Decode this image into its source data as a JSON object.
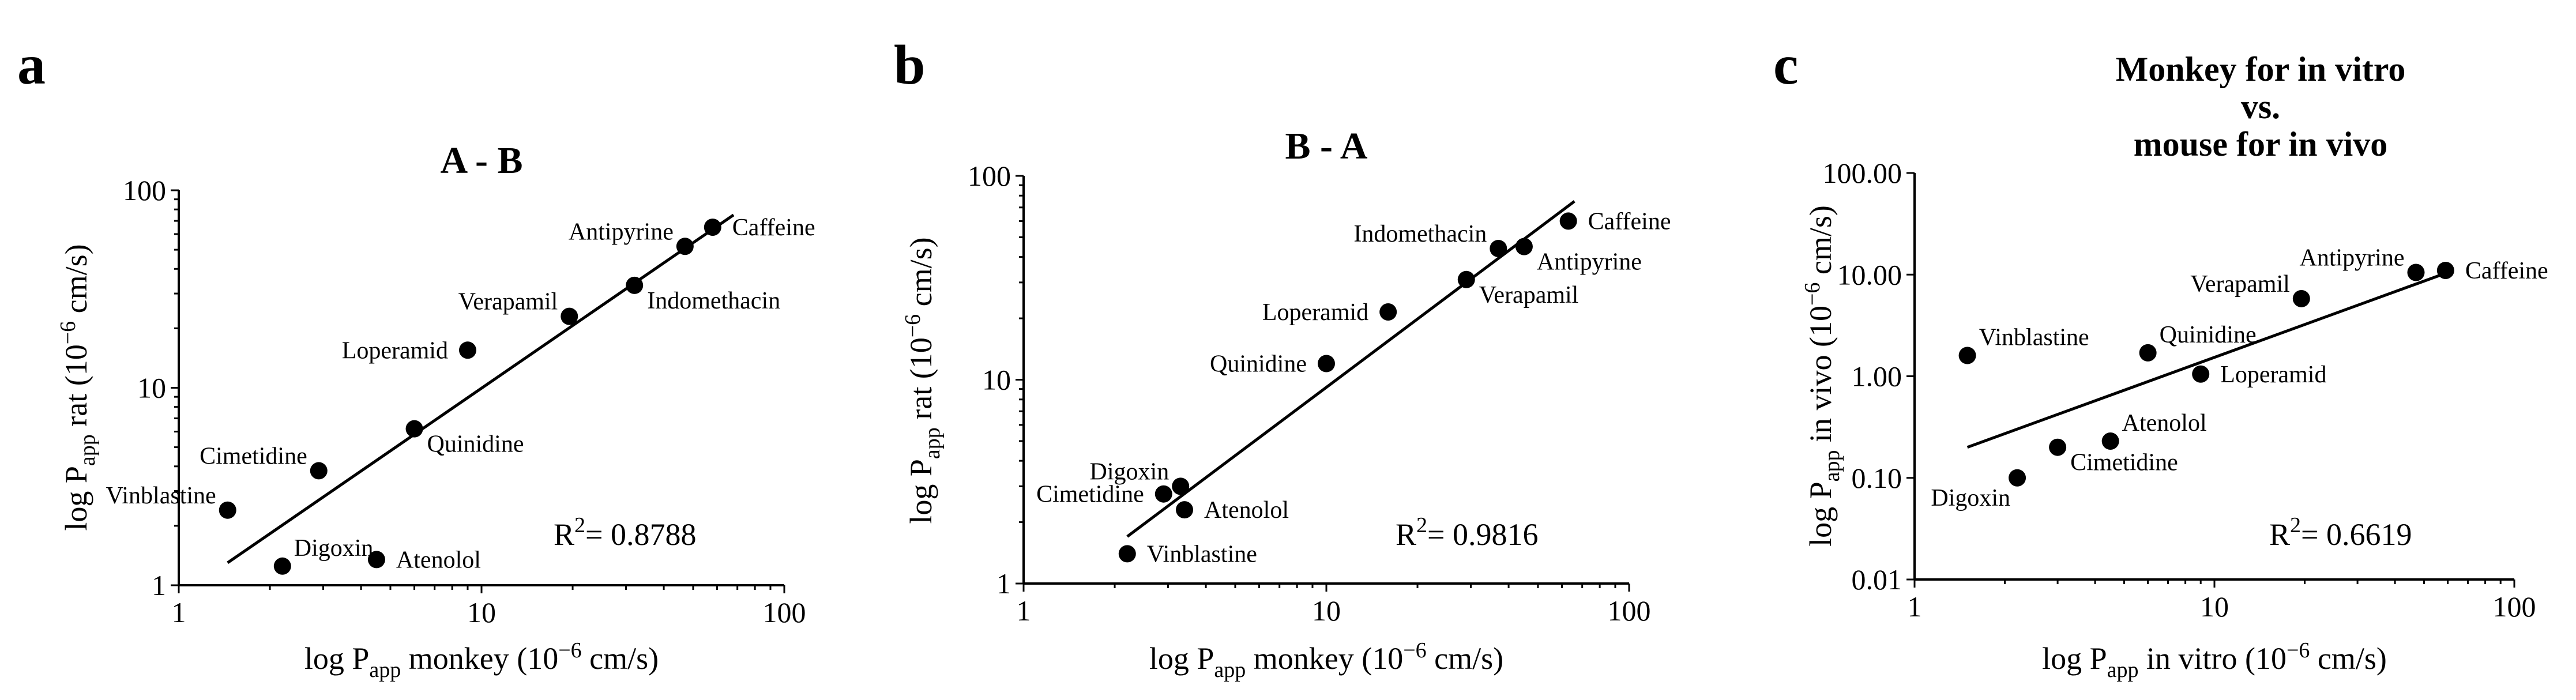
{
  "chart_data": [
    {
      "panel": "a",
      "type": "scatter",
      "title": "A - B",
      "xlabel": {
        "pre": "log P",
        "sub": "app",
        "post": " monkey  (10",
        "sup": "−6",
        "end": " cm/s)"
      },
      "ylabel": {
        "pre": "log P",
        "sub": "app",
        "post": " rat  (10",
        "sup": "−6",
        "end": " cm/s)"
      },
      "xscale": "log",
      "yscale": "log",
      "xlim": [
        1,
        100
      ],
      "ylim": [
        1,
        100
      ],
      "xticks": [
        1,
        10,
        100
      ],
      "xtick_labels": [
        "1",
        "10",
        "100"
      ],
      "yticks": [
        1,
        10,
        100
      ],
      "ytick_labels": [
        "1",
        "10",
        "100"
      ],
      "r2": {
        "pre": "R",
        "sup": "2",
        "post": "= 0.8788"
      },
      "fit": {
        "x": [
          1.45,
          68
        ],
        "y": [
          1.3,
          75
        ]
      },
      "points": [
        {
          "name": "Caffeine",
          "x": 58,
          "y": 65,
          "anchor": "right"
        },
        {
          "name": "Antipyrine",
          "x": 47,
          "y": 52,
          "anchor": "left-up"
        },
        {
          "name": "Indomethacin",
          "x": 32,
          "y": 33,
          "anchor": "right-down"
        },
        {
          "name": "Verapamil",
          "x": 19.5,
          "y": 23,
          "anchor": "left-up"
        },
        {
          "name": "Loperamid",
          "x": 9,
          "y": 15.5,
          "anchor": "left"
        },
        {
          "name": "Quinidine",
          "x": 6,
          "y": 6.2,
          "anchor": "right-down"
        },
        {
          "name": "Cimetidine",
          "x": 2.9,
          "y": 3.8,
          "anchor": "left-up"
        },
        {
          "name": "Vinblastine",
          "x": 1.45,
          "y": 2.4,
          "anchor": "left-up"
        },
        {
          "name": "Digoxin",
          "x": 2.2,
          "y": 1.25,
          "anchor": "right-up"
        },
        {
          "name": "Atenolol",
          "x": 4.5,
          "y": 1.35,
          "anchor": "right"
        }
      ]
    },
    {
      "panel": "b",
      "type": "scatter",
      "title": "B - A",
      "xlabel": {
        "pre": "log P",
        "sub": "app",
        "post": " monkey (10",
        "sup": "−6",
        "end": " cm/s)"
      },
      "ylabel": {
        "pre": "log P",
        "sub": "app",
        "post": " rat  (10",
        "sup": "−6",
        "end": " cm/s)"
      },
      "xscale": "log",
      "yscale": "log",
      "xlim": [
        1,
        100
      ],
      "ylim": [
        1,
        100
      ],
      "xticks": [
        1,
        10,
        100
      ],
      "xtick_labels": [
        "1",
        "10",
        "100"
      ],
      "yticks": [
        1,
        10,
        100
      ],
      "ytick_labels": [
        "1",
        "10",
        "100"
      ],
      "r2": {
        "pre": "R",
        "sup": "2",
        "post": "= 0.9816"
      },
      "fit": {
        "x": [
          2.2,
          66
        ],
        "y": [
          1.7,
          75
        ]
      },
      "points": [
        {
          "name": "Caffeine",
          "x": 63,
          "y": 60,
          "anchor": "right"
        },
        {
          "name": "Indomethacin",
          "x": 37,
          "y": 44,
          "anchor": "left-up"
        },
        {
          "name": "Antipyrine",
          "x": 45,
          "y": 45,
          "anchor": "right-down"
        },
        {
          "name": "Verapamil",
          "x": 29,
          "y": 31,
          "anchor": "right-down"
        },
        {
          "name": "Loperamid",
          "x": 16,
          "y": 21.5,
          "anchor": "left"
        },
        {
          "name": "Quinidine",
          "x": 10,
          "y": 12,
          "anchor": "left"
        },
        {
          "name": "Digoxin",
          "x": 3.3,
          "y": 3.0,
          "anchor": "left-up"
        },
        {
          "name": "Cimetidine",
          "x": 2.9,
          "y": 2.75,
          "anchor": "left"
        },
        {
          "name": "Atenolol",
          "x": 3.4,
          "y": 2.3,
          "anchor": "right"
        },
        {
          "name": "Vinblastine",
          "x": 2.2,
          "y": 1.4,
          "anchor": "right"
        }
      ]
    },
    {
      "panel": "c",
      "type": "scatter",
      "title": [
        "Monkey for in vitro",
        "vs.",
        "mouse for in vivo"
      ],
      "xlabel": {
        "pre": "log P",
        "sub": "app",
        "post": " in vitro (10",
        "sup": "−6",
        "end": " cm/s)"
      },
      "ylabel": {
        "pre": "log P",
        "sub": "app",
        "post": " in vivo  (10",
        "sup": "−6",
        "end": " cm/s)"
      },
      "xscale": "log",
      "yscale": "log",
      "xlim": [
        1,
        100
      ],
      "ylim": [
        0.01,
        100
      ],
      "xticks": [
        1,
        10,
        100
      ],
      "xtick_labels": [
        "1",
        "10",
        "100"
      ],
      "yticks": [
        0.01,
        0.1,
        1,
        10,
        100
      ],
      "ytick_labels": [
        "0.01",
        "0.10",
        "1.00",
        "10.00",
        "100.00"
      ],
      "r2": {
        "pre": "R",
        "sup": "2",
        "post": "= 0.6619"
      },
      "fit": {
        "x": [
          1.5,
          60
        ],
        "y": [
          0.2,
          10.5
        ]
      },
      "points": [
        {
          "name": "Caffeine",
          "x": 59,
          "y": 11,
          "anchor": "right"
        },
        {
          "name": "Antipyrine",
          "x": 47,
          "y": 10.5,
          "anchor": "left-up"
        },
        {
          "name": "Verapamil",
          "x": 19.5,
          "y": 5.8,
          "anchor": "left-up"
        },
        {
          "name": "Quinidine",
          "x": 6,
          "y": 1.7,
          "anchor": "right-up"
        },
        {
          "name": "Loperamid",
          "x": 9,
          "y": 1.05,
          "anchor": "right"
        },
        {
          "name": "Vinblastine",
          "x": 1.5,
          "y": 1.6,
          "anchor": "right-up"
        },
        {
          "name": "Atenolol",
          "x": 4.5,
          "y": 0.23,
          "anchor": "right-up"
        },
        {
          "name": "Cimetidine",
          "x": 3.0,
          "y": 0.2,
          "anchor": "right-down"
        },
        {
          "name": "Digoxin",
          "x": 2.2,
          "y": 0.1,
          "anchor": "left-down"
        }
      ]
    }
  ]
}
